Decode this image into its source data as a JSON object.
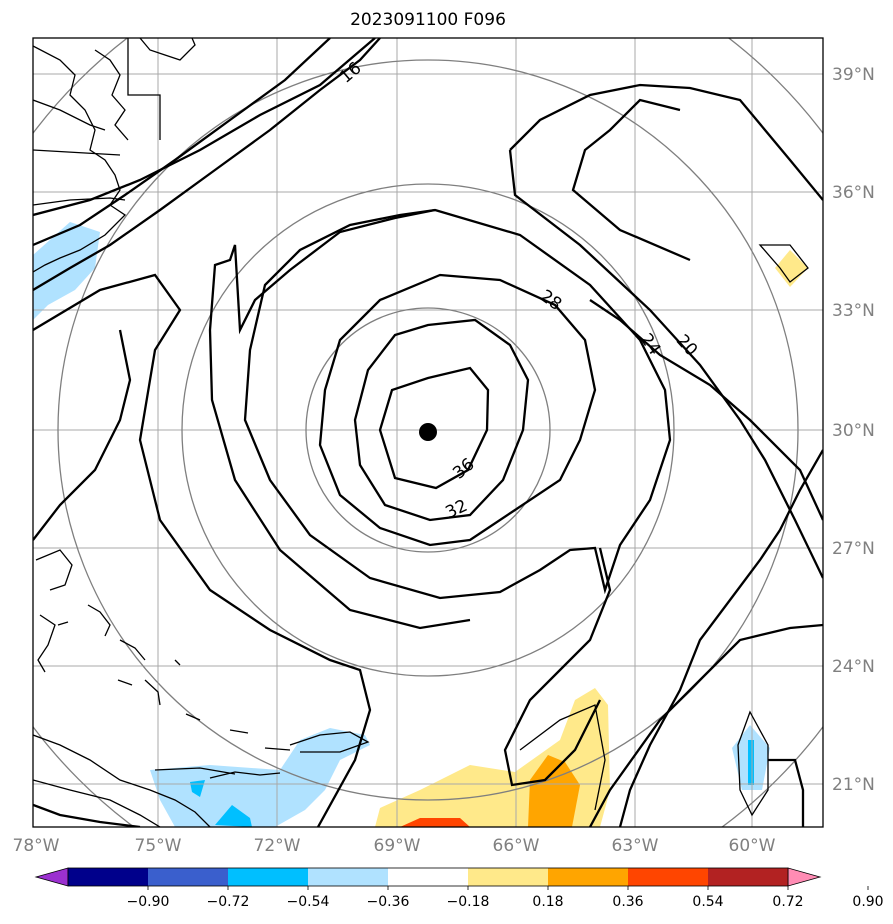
{
  "title": "2023091100 F096",
  "lon_labels": [
    "78°W",
    "75°W",
    "72°W",
    "69°W",
    "66°W",
    "63°W",
    "60°W"
  ],
  "lat_labels": [
    "39°N",
    "36°N",
    "33°N",
    "30°N",
    "27°N",
    "24°N",
    "21°N"
  ],
  "contour_labels": [
    "16",
    "20",
    "24",
    "28",
    "32",
    "36"
  ],
  "colorbar": {
    "ticks": [
      "−0.90",
      "−0.72",
      "−0.54",
      "−0.36",
      "−0.18",
      "0.18",
      "0.36",
      "0.54",
      "0.72",
      "0.90"
    ],
    "colors": [
      "#9b30d0",
      "#00008b",
      "#3a5fcd",
      "#00bfff",
      "#b0e2ff",
      "#ffffff",
      "#ffe98a",
      "#ffa500",
      "#ff4500",
      "#b22222",
      "#ff8cb4"
    ]
  }
}
